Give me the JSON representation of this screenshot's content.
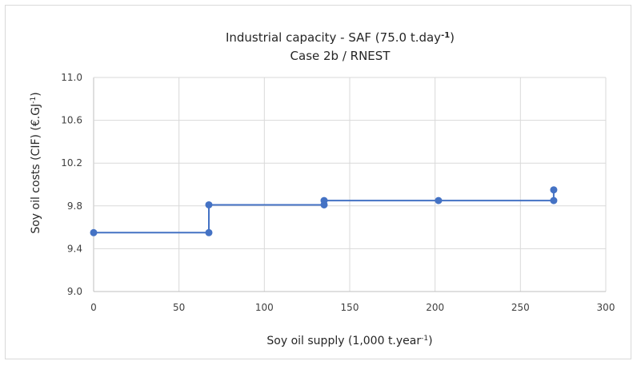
{
  "chart_data": {
    "type": "line",
    "title": "Industrial capacity - SAF (75.0 t.day",
    "title_sup": "-1",
    "title_end": ")",
    "subtitle": "Case 2b / RNEST",
    "xlabel": "Soy oil supply (1,000 t.year",
    "xlabel_sup": "-1",
    "xlabel_end": ")",
    "ylabel": "Soy oil costs (CIF) (€.GJ",
    "ylabel_sup": "-1",
    "ylabel_end": ")",
    "xlim": [
      0,
      300
    ],
    "ylim": [
      9.0,
      11.0
    ],
    "x_ticks": [
      "0",
      "50",
      "100",
      "150",
      "200",
      "250",
      "300"
    ],
    "y_ticks": [
      "9.0",
      "9.4",
      "9.8",
      "10.2",
      "10.6",
      "11.0"
    ],
    "grid": true,
    "legend": "none",
    "color": "#4472c4",
    "series": [
      {
        "x": [
          0,
          67.5,
          67.5,
          135,
          135,
          202,
          269.5,
          269.5
        ],
        "y": [
          9.55,
          9.55,
          9.81,
          9.81,
          9.85,
          9.85,
          9.85,
          9.95
        ]
      }
    ]
  }
}
